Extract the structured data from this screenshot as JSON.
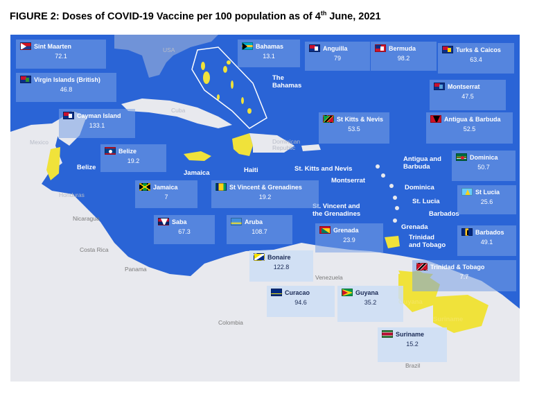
{
  "title": {
    "prefix": "FIGURE 2: Doses of COVID-19 Vaccine per 100 population as of 4",
    "sup": "th",
    "suffix": " June, 2021"
  },
  "colors": {
    "sea": "#2a64d6",
    "land": "#e8e9ee",
    "highlight": "#f0e23a",
    "box": "#7ba0e6"
  },
  "countries": [
    {
      "key": "sint_maarten",
      "name": "Sint Maarten",
      "value": "72.1",
      "flag": "sint-maarten-flag"
    },
    {
      "key": "bahamas",
      "name": "Bahamas",
      "value": "13.1",
      "flag": "bahamas-flag"
    },
    {
      "key": "anguilla",
      "name": "Anguilla",
      "value": "79",
      "flag": "anguilla-flag"
    },
    {
      "key": "bermuda",
      "name": "Bermuda",
      "value": "98.2",
      "flag": "bermuda-flag"
    },
    {
      "key": "turks_caicos",
      "name": "Turks & Caicos",
      "value": "63.4",
      "flag": "turks-caicos-flag"
    },
    {
      "key": "bvi",
      "name": "Virgin Islands (British)",
      "value": "46.8",
      "flag": "bvi-flag"
    },
    {
      "key": "montserrat",
      "name": "Montserrat",
      "value": "47.5",
      "flag": "montserrat-flag"
    },
    {
      "key": "cayman",
      "name": "Cayman Island",
      "value": "133.1",
      "flag": "cayman-flag"
    },
    {
      "key": "st_kitts",
      "name": "St Kitts & Nevis",
      "value": "53.5",
      "flag": "st-kitts-flag"
    },
    {
      "key": "antigua",
      "name": "Antigua & Barbuda",
      "value": "52.5",
      "flag": "antigua-flag"
    },
    {
      "key": "belize",
      "name": "Belize",
      "value": "19.2",
      "flag": "belize-flag"
    },
    {
      "key": "dominica",
      "name": "Dominica",
      "value": "50.7",
      "flag": "dominica-flag"
    },
    {
      "key": "jamaica",
      "name": "Jamaica",
      "value": "7",
      "flag": "jamaica-flag"
    },
    {
      "key": "st_vincent",
      "name": "St Vincent & Grenadines",
      "value": "19.2",
      "flag": "st-vincent-flag"
    },
    {
      "key": "st_lucia",
      "name": "St Lucia",
      "value": "25.6",
      "flag": "st-lucia-flag"
    },
    {
      "key": "saba",
      "name": "Saba",
      "value": "67.3",
      "flag": "saba-flag"
    },
    {
      "key": "aruba",
      "name": "Aruba",
      "value": "108.7",
      "flag": "aruba-flag"
    },
    {
      "key": "grenada",
      "name": "Grenada",
      "value": "23.9",
      "flag": "grenada-flag"
    },
    {
      "key": "barbados",
      "name": "Barbados",
      "value": "49.1",
      "flag": "barbados-flag"
    },
    {
      "key": "bonaire",
      "name": "Bonaire",
      "value": "122.8",
      "flag": "bonaire-flag"
    },
    {
      "key": "trinidad",
      "name": "Trinidad & Tobago",
      "value": "7.7",
      "flag": "trinidad-flag"
    },
    {
      "key": "curacao",
      "name": "Curacao",
      "value": "94.6",
      "flag": "curacao-flag"
    },
    {
      "key": "guyana",
      "name": "Guyana",
      "value": "35.2",
      "flag": "guyana-flag"
    },
    {
      "key": "suriname",
      "name": "Suriname",
      "value": "15.2",
      "flag": "suriname-flag"
    }
  ],
  "map_labels": {
    "usa": "USA",
    "the_bahamas": "The\nBahamas",
    "cuba": "Cuba",
    "mexico": "Mexico",
    "dominican_republic": "Dominican\nRepublic",
    "belize": "Belize",
    "jamaica": "Jamaica",
    "haiti": "Haiti",
    "st_kitts_nevis": "St. Kitts and Nevis",
    "montserrat": "Montserrat",
    "antigua_barbuda": "Antigua and\nBarbuda",
    "dominica": "Dominica",
    "st_lucia": "St. Lucia",
    "barbados": "Barbados",
    "st_vincent": "St. Vincent and\nthe Grenadines",
    "grenada": "Grenada",
    "trinidad_tobago": "Trinidad\nand Tobago",
    "honduras": "Honduras",
    "nicaragua": "Nicaragua",
    "costa_rica": "Costa Rica",
    "panama": "Panama",
    "venezuela": "Venezuela",
    "colombia": "Colombia",
    "guyana": "Guyana",
    "suriname": "Suriname",
    "brazil": "Brazil"
  }
}
